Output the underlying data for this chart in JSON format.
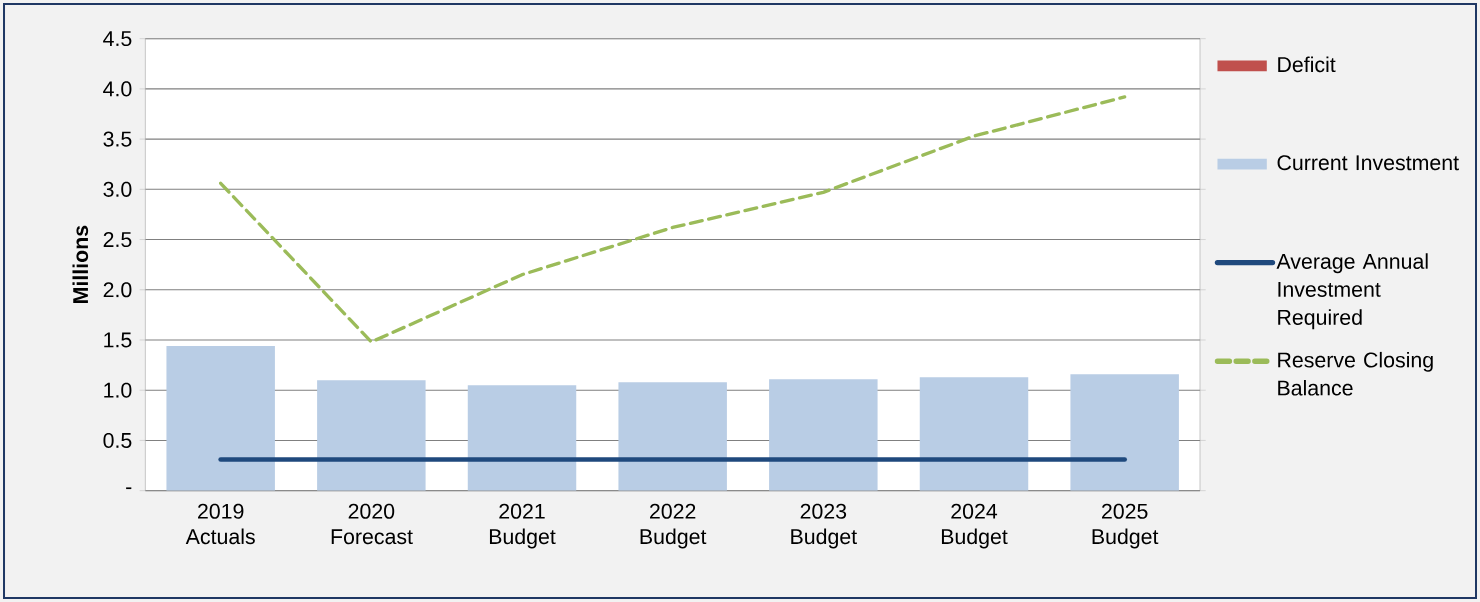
{
  "chart_data": {
    "type": "bar",
    "ylabel": "Millions",
    "categories": [
      "2019 Actuals",
      "2020 Forecast",
      "2021 Budget",
      "2022 Budget",
      "2023 Budget",
      "2024 Budget",
      "2025 Budget"
    ],
    "series": [
      {
        "name": "Deficit",
        "color": "#c0504d",
        "values": [
          0,
          0,
          0,
          0,
          0,
          0,
          0
        ]
      },
      {
        "name": "Current Investment",
        "color": "#b9cde5",
        "values": [
          1.44,
          1.1,
          1.05,
          1.08,
          1.11,
          1.13,
          1.16
        ]
      },
      {
        "name": "Average Annual Investment Required",
        "type": "line",
        "color": "#1f497d",
        "line_style": "solid",
        "values": [
          0.31,
          0.31,
          0.31,
          0.31,
          0.31,
          0.31,
          0.31
        ]
      },
      {
        "name": "Reserve Closing Balance",
        "type": "line",
        "color": "#9bbb59",
        "line_style": "dashed",
        "values": [
          3.06,
          1.48,
          2.15,
          2.62,
          2.97,
          3.53,
          3.92
        ]
      }
    ],
    "ylim": [
      0,
      4.5
    ],
    "yticks": [
      {
        "value": 0,
        "label": "-"
      },
      {
        "value": 0.5,
        "label": "0.5"
      },
      {
        "value": 1,
        "label": "1.0"
      },
      {
        "value": 1.5,
        "label": "1.5"
      },
      {
        "value": 2,
        "label": "2.0"
      },
      {
        "value": 2.5,
        "label": "2.5"
      },
      {
        "value": 3,
        "label": "3.0"
      },
      {
        "value": 3.5,
        "label": "3.5"
      },
      {
        "value": 4,
        "label": "4.0"
      },
      {
        "value": 4.5,
        "label": "4.5"
      }
    ],
    "grid": "y",
    "legend": "right",
    "marker": "none"
  }
}
